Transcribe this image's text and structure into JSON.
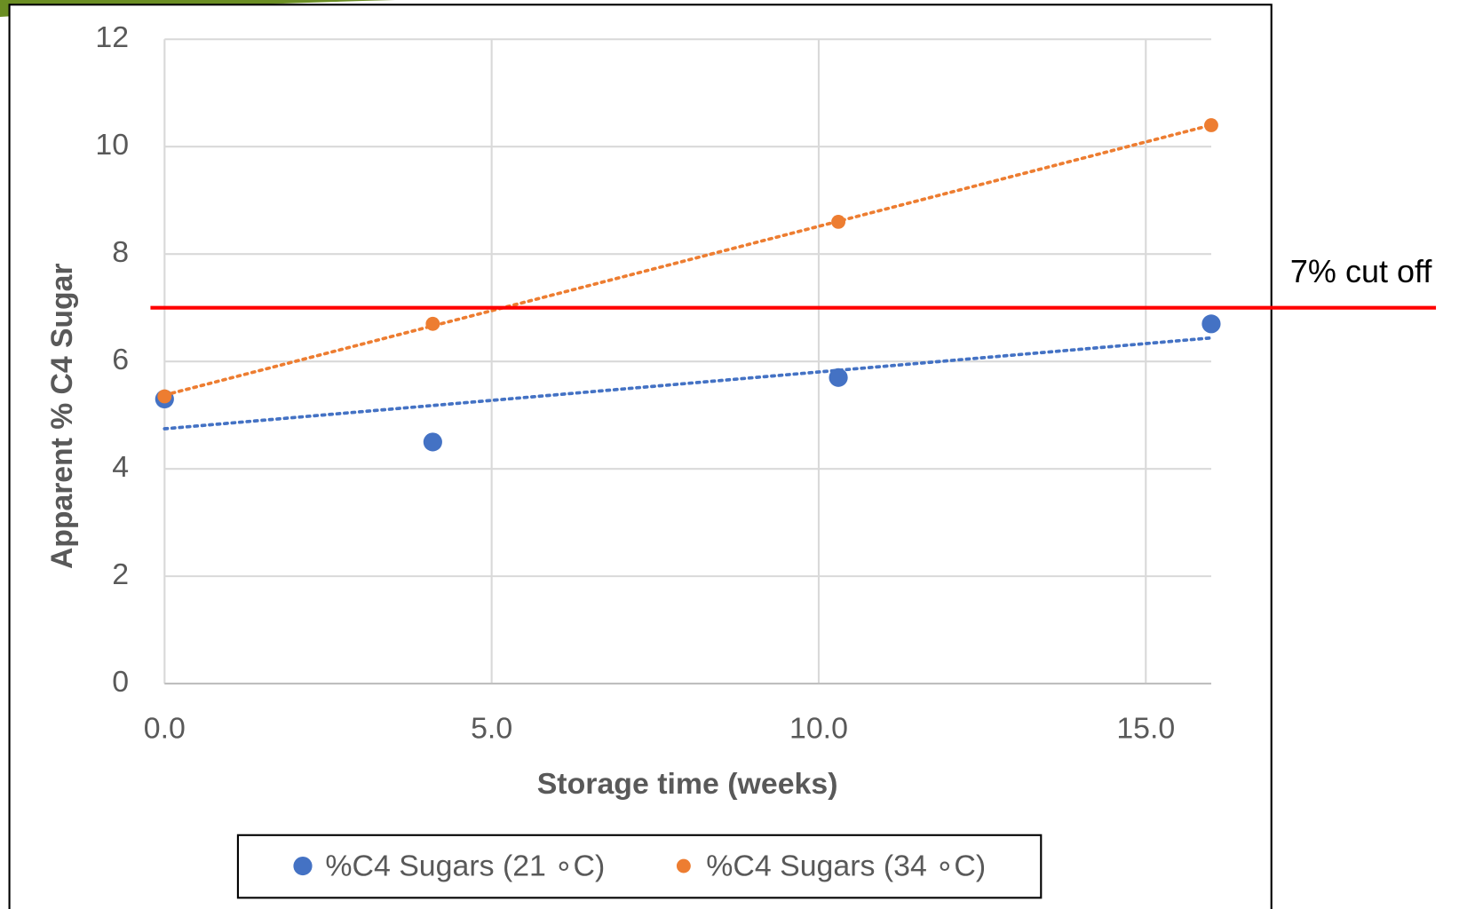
{
  "chart_data": {
    "type": "scatter",
    "x_label": "Storage time (weeks)",
    "y_label": "Apparent % C4 Sugar",
    "xlim": [
      0,
      16
    ],
    "ylim": [
      0,
      12
    ],
    "xticks": [
      {
        "value": 0,
        "label": "0.0"
      },
      {
        "value": 5,
        "label": "5.0"
      },
      {
        "value": 10,
        "label": "10.0"
      },
      {
        "value": 15,
        "label": "15.0"
      }
    ],
    "yticks": [
      0,
      2,
      4,
      6,
      8,
      10,
      12
    ],
    "grid": true,
    "trendline": "linear",
    "legend": "bottom",
    "series": [
      {
        "name": "%C4 Sugars (21 ∘C)",
        "color": "#4472c4",
        "x": [
          0,
          4.1,
          10.3,
          16
        ],
        "values": [
          5.3,
          4.5,
          5.7,
          6.7
        ]
      },
      {
        "name": "%C4 Sugars (34 ∘C)",
        "color": "#ed7d31",
        "x": [
          0,
          4.1,
          10.3,
          16
        ],
        "values": [
          5.35,
          6.7,
          8.6,
          10.4
        ]
      }
    ],
    "reference_line": {
      "value": 7,
      "label": "7% cut off",
      "color": "#ff0000"
    }
  }
}
